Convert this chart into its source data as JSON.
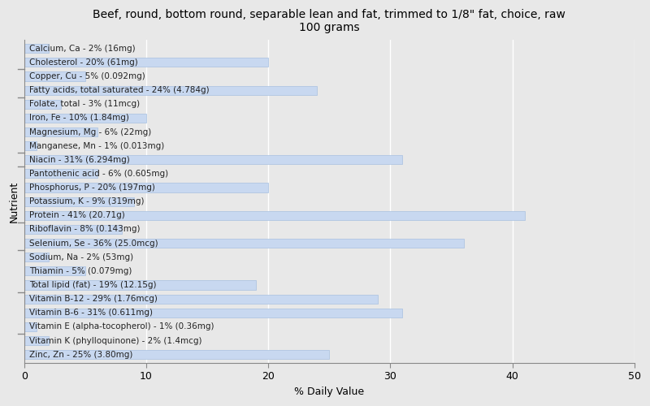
{
  "title": "Beef, round, bottom round, separable lean and fat, trimmed to 1/8\" fat, choice, raw\n100 grams",
  "xlabel": "% Daily Value",
  "ylabel": "Nutrient",
  "background_color": "#e8e8e8",
  "plot_bg_color": "#f0f4fa",
  "bar_color": "#c8d8f0",
  "bar_edge_color": "#a8c0e0",
  "nutrients": [
    {
      "label": "Calcium, Ca - 2% (16mg)",
      "value": 2
    },
    {
      "label": "Cholesterol - 20% (61mg)",
      "value": 20
    },
    {
      "label": "Copper, Cu - 5% (0.092mg)",
      "value": 5
    },
    {
      "label": "Fatty acids, total saturated - 24% (4.784g)",
      "value": 24
    },
    {
      "label": "Folate, total - 3% (11mcg)",
      "value": 3
    },
    {
      "label": "Iron, Fe - 10% (1.84mg)",
      "value": 10
    },
    {
      "label": "Magnesium, Mg - 6% (22mg)",
      "value": 6
    },
    {
      "label": "Manganese, Mn - 1% (0.013mg)",
      "value": 1
    },
    {
      "label": "Niacin - 31% (6.294mg)",
      "value": 31
    },
    {
      "label": "Pantothenic acid - 6% (0.605mg)",
      "value": 6
    },
    {
      "label": "Phosphorus, P - 20% (197mg)",
      "value": 20
    },
    {
      "label": "Potassium, K - 9% (319mg)",
      "value": 9
    },
    {
      "label": "Protein - 41% (20.71g)",
      "value": 41
    },
    {
      "label": "Riboflavin - 8% (0.143mg)",
      "value": 8
    },
    {
      "label": "Selenium, Se - 36% (25.0mcg)",
      "value": 36
    },
    {
      "label": "Sodium, Na - 2% (53mg)",
      "value": 2
    },
    {
      "label": "Thiamin - 5% (0.079mg)",
      "value": 5
    },
    {
      "label": "Total lipid (fat) - 19% (12.15g)",
      "value": 19
    },
    {
      "label": "Vitamin B-12 - 29% (1.76mcg)",
      "value": 29
    },
    {
      "label": "Vitamin B-6 - 31% (0.611mg)",
      "value": 31
    },
    {
      "label": "Vitamin E (alpha-tocopherol) - 1% (0.36mg)",
      "value": 1
    },
    {
      "label": "Vitamin K (phylloquinone) - 2% (1.4mcg)",
      "value": 2
    },
    {
      "label": "Zinc, Zn - 25% (3.80mg)",
      "value": 25
    }
  ],
  "xlim": [
    0,
    50
  ],
  "xticks": [
    0,
    10,
    20,
    30,
    40,
    50
  ],
  "title_fontsize": 10,
  "label_fontsize": 7.5,
  "axis_fontsize": 9,
  "bar_height": 0.65,
  "group_separators_from_top": [
    2,
    4,
    8,
    9,
    13,
    15,
    18,
    20
  ]
}
